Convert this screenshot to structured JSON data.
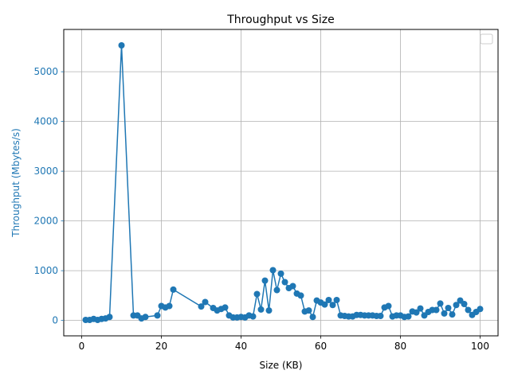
{
  "chart_data": {
    "type": "line",
    "title": "Throughput vs Size",
    "xlabel": "Size (KB)",
    "ylabel": "Throughput (Mbytes/s)",
    "xlim": [
      -4.5,
      104.5
    ],
    "ylim": [
      -310,
      5850
    ],
    "xticks": [
      0,
      20,
      40,
      60,
      80,
      100
    ],
    "yticks": [
      0,
      1000,
      2000,
      3000,
      4000,
      5000
    ],
    "grid": true,
    "legend": "top-right, empty",
    "colors": {
      "series": "#1f77b4",
      "ylabel": "#1f77b4",
      "grid": "#b0b0b0"
    },
    "series": [
      {
        "x": [
          1,
          2,
          3,
          4,
          5,
          6,
          7,
          10,
          13,
          14,
          15,
          16,
          19,
          20,
          21,
          22,
          23,
          30,
          31,
          33,
          34,
          35,
          36,
          37,
          38,
          39,
          40,
          41,
          42,
          43,
          44,
          45,
          46,
          47,
          48,
          49,
          50,
          51,
          52,
          53,
          54,
          55,
          56,
          57,
          58,
          59,
          60,
          61,
          62,
          63,
          64,
          65,
          66,
          67,
          68,
          69,
          70,
          71,
          72,
          73,
          74,
          75,
          76,
          77,
          78,
          79,
          80,
          81,
          82,
          83,
          84,
          85,
          86,
          87,
          88,
          89,
          90,
          91,
          92,
          93,
          94,
          95,
          96,
          97,
          98,
          99,
          100
        ],
        "y": [
          10,
          10,
          30,
          10,
          30,
          40,
          70,
          5530,
          100,
          100,
          40,
          70,
          100,
          290,
          260,
          290,
          620,
          280,
          370,
          250,
          200,
          230,
          260,
          100,
          60,
          60,
          70,
          60,
          100,
          80,
          530,
          220,
          800,
          200,
          1010,
          610,
          940,
          770,
          650,
          690,
          540,
          500,
          180,
          200,
          70,
          400,
          360,
          320,
          410,
          310,
          410,
          100,
          90,
          80,
          80,
          110,
          110,
          100,
          100,
          100,
          90,
          90,
          260,
          290,
          80,
          100,
          100,
          70,
          80,
          180,
          160,
          240,
          100,
          170,
          210,
          210,
          340,
          140,
          250,
          120,
          310,
          400,
          330,
          210,
          110,
          170,
          230
        ]
      }
    ]
  }
}
